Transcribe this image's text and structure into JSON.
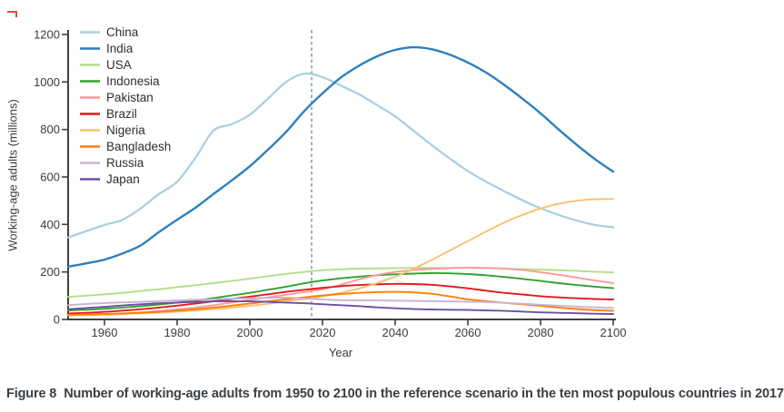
{
  "figure": {
    "caption_label": "Figure 8",
    "caption_text": "Number of working-age adults from 1950 to 2100 in the reference scenario in the ten most populous countries in 2017"
  },
  "chart_data": {
    "type": "line",
    "title": "",
    "xlabel": "Year",
    "ylabel": "Working-age adults (millions)",
    "xlim": [
      1950,
      2100
    ],
    "ylim": [
      0,
      1200
    ],
    "x_ticks": [
      1960,
      1980,
      2000,
      2020,
      2040,
      2060,
      2080,
      2100
    ],
    "y_ticks": [
      0,
      200,
      400,
      600,
      800,
      1000,
      1200
    ],
    "grid": false,
    "legend_position": "inside top-left",
    "reference_line": {
      "x": 2017,
      "style": "dashed",
      "color": "#7e99a4"
    },
    "axis_color": "#404040",
    "text_color": "#3c3c3c",
    "x": [
      1950,
      1955,
      1960,
      1965,
      1970,
      1975,
      1980,
      1985,
      1990,
      1995,
      2000,
      2005,
      2010,
      2015,
      2020,
      2025,
      2030,
      2035,
      2040,
      2045,
      2050,
      2055,
      2060,
      2065,
      2070,
      2075,
      2080,
      2085,
      2090,
      2095,
      2100
    ],
    "series": [
      {
        "name": "China",
        "color": "#a6cee3",
        "values": [
          345,
          372,
          398,
          420,
          468,
          528,
          580,
          680,
          795,
          822,
          862,
          930,
          1000,
          1035,
          1020,
          985,
          948,
          903,
          855,
          795,
          735,
          678,
          625,
          580,
          540,
          502,
          468,
          440,
          416,
          398,
          388
        ]
      },
      {
        "name": "India",
        "color": "#2e7fbe",
        "values": [
          222,
          236,
          252,
          278,
          312,
          368,
          420,
          470,
          528,
          585,
          645,
          715,
          790,
          878,
          952,
          1018,
          1068,
          1108,
          1135,
          1146,
          1138,
          1115,
          1082,
          1040,
          988,
          930,
          868,
          800,
          735,
          675,
          622
        ]
      },
      {
        "name": "USA",
        "color": "#b2df8a",
        "values": [
          95,
          100,
          106,
          112,
          120,
          127,
          136,
          144,
          153,
          162,
          172,
          182,
          192,
          200,
          207,
          211,
          214,
          215,
          216,
          217,
          217,
          217,
          217,
          216,
          214,
          212,
          210,
          207,
          204,
          201,
          198
        ]
      },
      {
        "name": "Indonesia",
        "color": "#33a02c",
        "values": [
          38,
          41,
          45,
          50,
          56,
          63,
          71,
          80,
          90,
          101,
          112,
          125,
          138,
          152,
          164,
          173,
          180,
          186,
          190,
          193,
          195,
          194,
          191,
          186,
          179,
          171,
          162,
          153,
          145,
          138,
          132
        ]
      },
      {
        "name": "Pakistan",
        "color": "#fb9a99",
        "values": [
          18,
          20,
          23,
          26,
          30,
          36,
          42,
          50,
          60,
          71,
          82,
          93,
          104,
          115,
          127,
          146,
          168,
          187,
          200,
          208,
          213,
          216,
          218,
          217,
          214,
          208,
          199,
          188,
          176,
          164,
          153
        ]
      },
      {
        "name": "Brazil",
        "color": "#e31a1c",
        "values": [
          25,
          28,
          32,
          37,
          43,
          50,
          58,
          67,
          76,
          86,
          96,
          106,
          116,
          125,
          133,
          140,
          145,
          148,
          150,
          149,
          146,
          139,
          131,
          121,
          112,
          105,
          98,
          93,
          89,
          86,
          84
        ]
      },
      {
        "name": "Nigeria",
        "color": "#fdbf6f",
        "values": [
          17,
          18,
          20,
          23,
          26,
          29,
          33,
          38,
          44,
          50,
          57,
          66,
          76,
          86,
          97,
          112,
          130,
          153,
          180,
          213,
          250,
          290,
          330,
          370,
          408,
          440,
          467,
          487,
          500,
          506,
          507
        ]
      },
      {
        "name": "Bangladesh",
        "color": "#ff7f00",
        "values": [
          19,
          21,
          23,
          25,
          28,
          32,
          37,
          43,
          50,
          58,
          67,
          76,
          85,
          93,
          101,
          107,
          112,
          115,
          116,
          114,
          108,
          97,
          85,
          77,
          70,
          64,
          57,
          50,
          44,
          39,
          36
        ]
      },
      {
        "name": "Russia",
        "color": "#cab2d6",
        "values": [
          60,
          65,
          69,
          72,
          74,
          77,
          80,
          83,
          85,
          87,
          89,
          91,
          92,
          88,
          84,
          81,
          80,
          80,
          79,
          78,
          77,
          76,
          75,
          73,
          70,
          66,
          62,
          58,
          54,
          51,
          48
        ]
      },
      {
        "name": "Japan",
        "color": "#6a51a3",
        "values": [
          43,
          48,
          53,
          59,
          64,
          68,
          71,
          74,
          76,
          77,
          76,
          74,
          71,
          68,
          64,
          60,
          56,
          51,
          47,
          44,
          42,
          41,
          40,
          38,
          36,
          33,
          30,
          28,
          26,
          24,
          23
        ]
      }
    ]
  }
}
